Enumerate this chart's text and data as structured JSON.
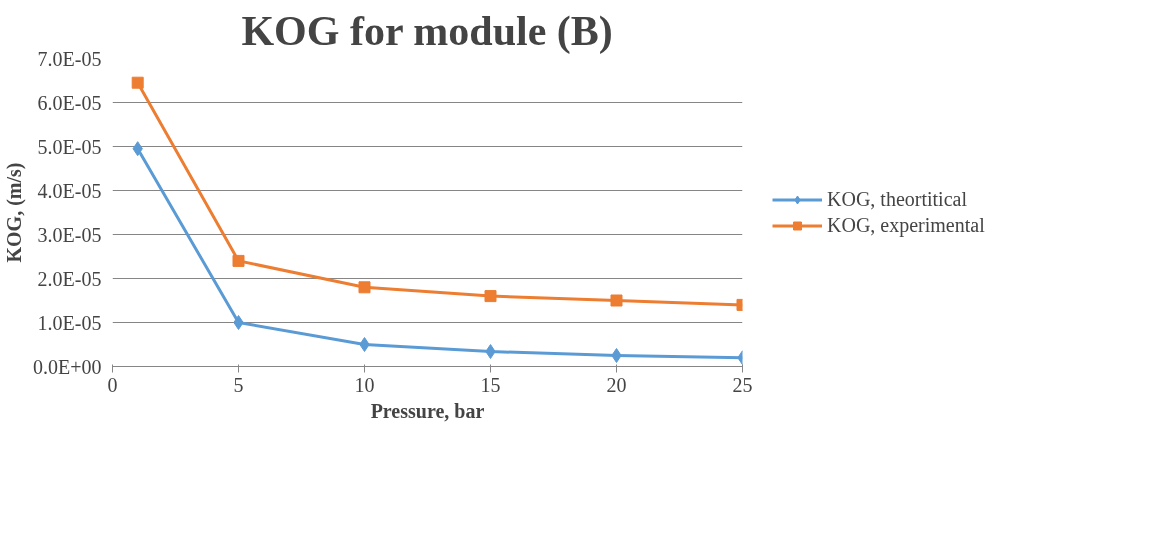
{
  "chart_data": {
    "type": "line",
    "title": "KOG for module (B)",
    "xlabel": "Pressure, bar",
    "ylabel": "KOG, (m/s)",
    "x": [
      1,
      5,
      10,
      15,
      20,
      25
    ],
    "series": [
      {
        "name": "KOG, theortitical",
        "color": "#5b9bd5",
        "marker": "diamond",
        "values": [
          4.95e-05,
          1e-05,
          5e-06,
          3.4e-06,
          2.5e-06,
          2e-06
        ]
      },
      {
        "name": "KOG, experimental",
        "color": "#ed7d31",
        "marker": "square",
        "values": [
          6.45e-05,
          2.4e-05,
          1.8e-05,
          1.6e-05,
          1.5e-05,
          1.4e-05
        ]
      }
    ],
    "xlim": [
      0,
      25
    ],
    "xticks": [
      0,
      5,
      10,
      15,
      20,
      25
    ],
    "ylim": [
      0,
      7e-05
    ],
    "yticks": [
      {
        "value": 0,
        "label": "0.0E+00"
      },
      {
        "value": 1e-05,
        "label": "1.0E-05"
      },
      {
        "value": 2e-05,
        "label": "2.0E-05"
      },
      {
        "value": 3e-05,
        "label": "3.0E-05"
      },
      {
        "value": 4e-05,
        "label": "4.0E-05"
      },
      {
        "value": 5e-05,
        "label": "5.0E-05"
      },
      {
        "value": 6e-05,
        "label": "6.0E-05"
      },
      {
        "value": 7e-05,
        "label": "7.0E-05"
      }
    ],
    "grid": "y",
    "legend": "right",
    "line_style": "solid"
  }
}
